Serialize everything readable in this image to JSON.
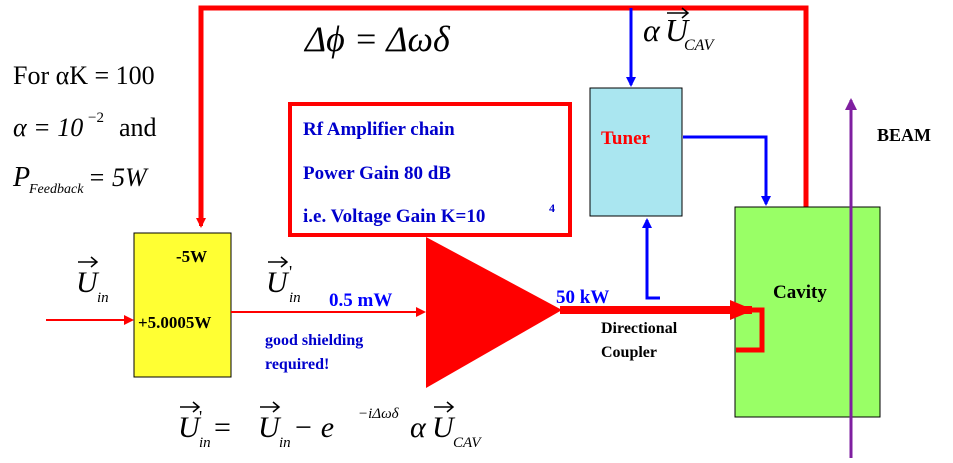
{
  "equations": {
    "phase_shift": "Δϕ = Δωδ",
    "coupled_signal_alpha": "α",
    "coupled_signal_u": "U",
    "coupled_signal_sub": "CAV",
    "condition_line1": "For αK = 100",
    "condition_line2_alpha": "α = 10",
    "condition_line2_exp": "−2",
    "condition_line2_and": "and",
    "condition_line3_p": "P",
    "condition_line3_sub": "Feedback",
    "condition_line3_value": " = 5W",
    "bottom_lhs_u": "U",
    "bottom_lhs_prime": "'",
    "bottom_lhs_sub": "in",
    "bottom_eq": " = ",
    "bottom_rhs_u": "U",
    "bottom_rhs_sub": "in",
    "bottom_minus": " − e",
    "bottom_exp": "−iΔωδ",
    "bottom_alpha": "α",
    "bottom_rhs2_u": "U",
    "bottom_rhs2_sub": "CAV"
  },
  "amplifier_box": {
    "line1": "Rf Amplifier chain",
    "line2": "Power Gain 80 dB",
    "line3": "i.e. Voltage Gain K=10",
    "line3_exp": "4"
  },
  "adder": {
    "top_label": "-5W",
    "bottom_label": "+5.0005W"
  },
  "signals": {
    "u_in": "U",
    "u_in_sub": "in",
    "u_in_prime": "U",
    "u_in_prime_mark": "'",
    "u_in_prime_sub": "in",
    "drive_power": "0.5 mW",
    "output_power": "50 kW"
  },
  "notes": {
    "shielding_line1": "good shielding",
    "shielding_line2": "required!"
  },
  "blocks": {
    "tuner": "Tuner",
    "cavity": "Cavity",
    "coupler_line1": "Directional",
    "coupler_line2": "Coupler",
    "beam": "BEAM"
  },
  "colors": {
    "feedback_line": "#ff0000",
    "tuner_control": "#0000ff",
    "adder_fill": "#ffff33",
    "tuner_fill": "#aae6f0",
    "cavity_fill": "#99ff66",
    "beam_line": "#7f1fa0",
    "amp_text": "#0000cc",
    "amp_border": "#ff0000"
  }
}
